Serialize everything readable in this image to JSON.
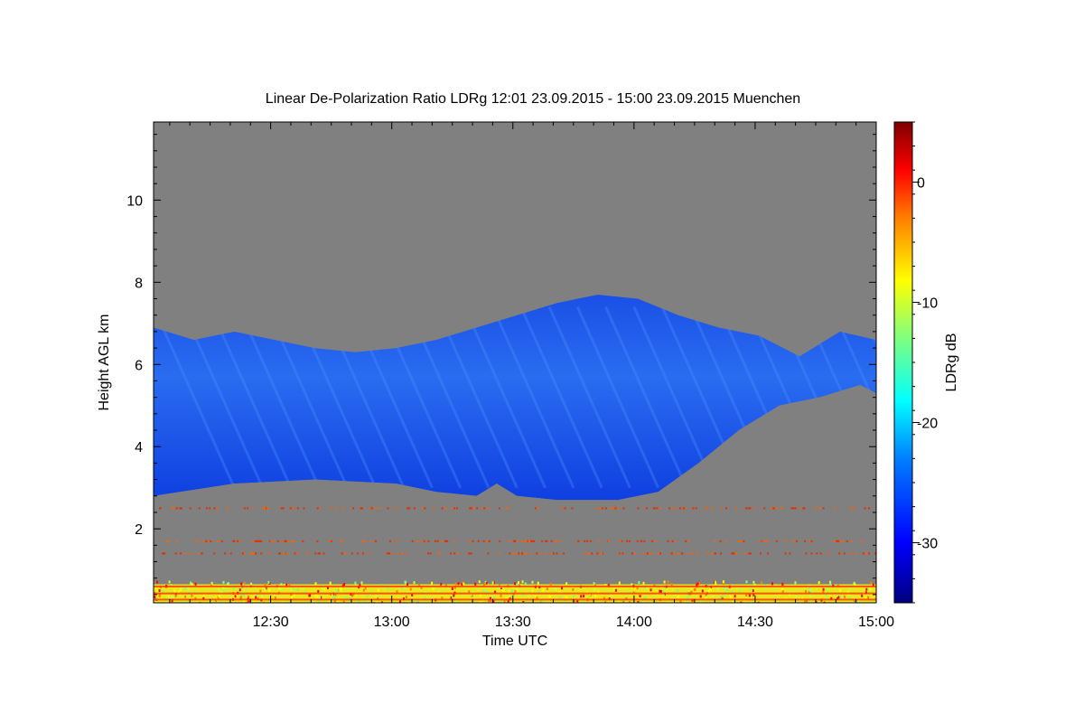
{
  "chart_data": {
    "type": "heatmap",
    "title": "Linear De-Polarization Ratio LDRg   12:01 23.09.2015 - 15:00 23.09.2015 Muenchen",
    "xlabel": "Time UTC",
    "ylabel": "Height AGL km",
    "colorbar_label": "LDRg dB",
    "xlim": [
      "12:01",
      "15:00"
    ],
    "ylim": [
      0.2,
      11.9
    ],
    "x_ticks": [
      "12:30",
      "13:00",
      "13:30",
      "14:00",
      "14:30",
      "15:00"
    ],
    "y_ticks": [
      "2",
      "4",
      "6",
      "8",
      "10"
    ],
    "colorbar_range": [
      -35,
      5
    ],
    "colorbar_ticks": [
      "0",
      "-10",
      "-20",
      "-30"
    ],
    "colormap": [
      "#00007f",
      "#0000ff",
      "#007fff",
      "#00ffff",
      "#7fff7f",
      "#ffff00",
      "#ff7f00",
      "#ff0000",
      "#7f0000"
    ],
    "no_signal_color": "#808080",
    "cloud_layer": {
      "time_start": "12:01",
      "time_end": "15:00",
      "typical_ldr_db": -30,
      "top_km": [
        [
          0,
          6.9
        ],
        [
          10,
          6.6
        ],
        [
          20,
          6.8
        ],
        [
          30,
          6.6
        ],
        [
          40,
          6.4
        ],
        [
          50,
          6.3
        ],
        [
          60,
          6.4
        ],
        [
          70,
          6.6
        ],
        [
          80,
          6.9
        ],
        [
          90,
          7.2
        ],
        [
          100,
          7.5
        ],
        [
          110,
          7.7
        ],
        [
          120,
          7.6
        ],
        [
          130,
          7.2
        ],
        [
          140,
          6.9
        ],
        [
          150,
          6.7
        ],
        [
          160,
          6.2
        ],
        [
          170,
          6.8
        ],
        [
          179,
          6.6
        ]
      ],
      "base_km": [
        [
          0,
          2.8
        ],
        [
          20,
          3.1
        ],
        [
          40,
          3.2
        ],
        [
          60,
          3.1
        ],
        [
          70,
          2.9
        ],
        [
          80,
          2.8
        ],
        [
          85,
          3.1
        ],
        [
          90,
          2.8
        ],
        [
          100,
          2.7
        ],
        [
          115,
          2.7
        ],
        [
          125,
          2.9
        ],
        [
          135,
          3.6
        ],
        [
          145,
          4.4
        ],
        [
          155,
          5.0
        ],
        [
          165,
          5.2
        ],
        [
          175,
          5.5
        ],
        [
          179,
          5.3
        ]
      ]
    },
    "noise_bands_km": [
      0.3,
      0.45,
      0.6,
      1.4,
      1.7,
      2.5
    ]
  }
}
